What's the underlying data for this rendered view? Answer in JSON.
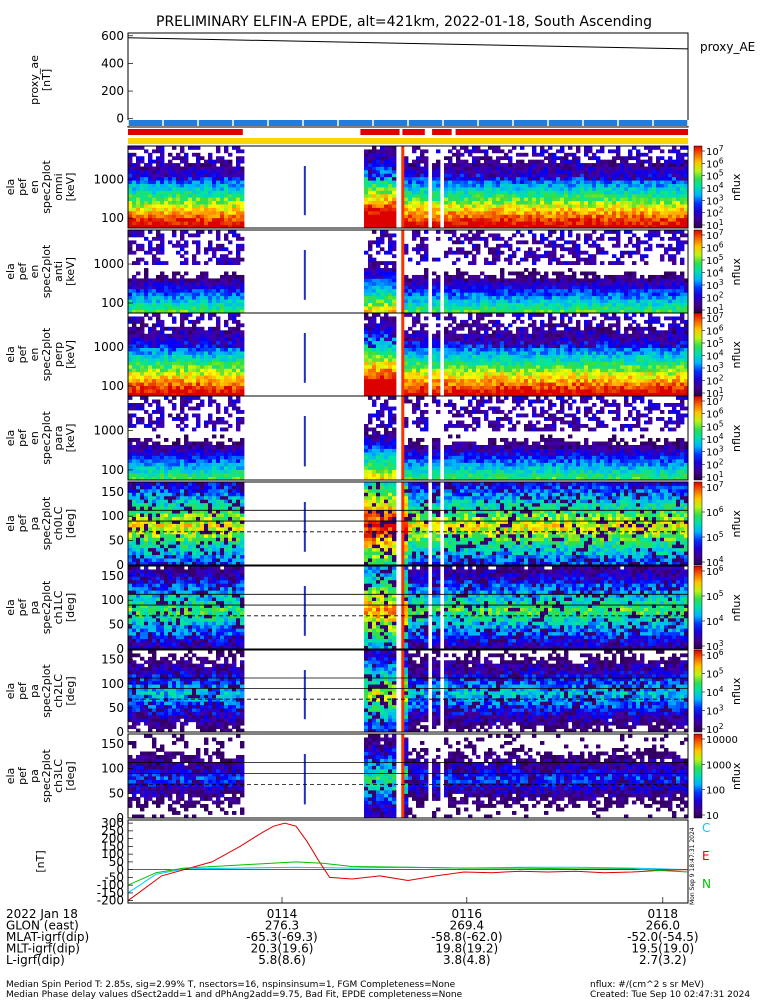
{
  "title": "PRELIMINARY ELFIN-A EPDE, alt=421km, 2022-01-18, South Ascending",
  "chart_data": [
    {
      "type": "line",
      "panel": "proxy_ae",
      "ylabel": [
        "proxy_ae",
        "[nT]"
      ],
      "yticks": [
        "600",
        "400",
        "200",
        "0"
      ],
      "ylim": [
        -60,
        620
      ],
      "legend": [
        "proxy_AE"
      ],
      "x": [
        0,
        1
      ],
      "values": [
        585,
        505
      ]
    },
    {
      "type": "heatmap",
      "panel": "status_bars",
      "bars": [
        {
          "color": "#1e7de0",
          "segments": [
            [
              0,
              1
            ]
          ],
          "note": "blue ticks"
        },
        {
          "color": "#e00000",
          "segments": [
            [
              0,
              0.205
            ],
            [
              0.415,
              0.485
            ],
            [
              0.49,
              0.53
            ],
            [
              0.543,
              0.578
            ],
            [
              0.585,
              1
            ]
          ]
        },
        {
          "color": "#ffd400",
          "segments": [
            [
              0,
              1
            ]
          ]
        }
      ]
    },
    {
      "type": "heatmap",
      "panel": "ela pef en spec2plot omni",
      "ylabel": [
        "ela",
        "pef",
        "en",
        "spec2plot",
        "omni",
        "[keV]"
      ],
      "yticks": [
        "1000",
        "100"
      ],
      "colorbar_ticks": [
        "10^7",
        "10^6",
        "10^5",
        "10^4",
        "10^3",
        "10^2",
        "10^1"
      ],
      "colorbar_label": "nflux"
    },
    {
      "type": "heatmap",
      "panel": "ela pef en spec2plot anti",
      "ylabel": [
        "ela",
        "pef",
        "en",
        "spec2plot",
        "anti",
        "[keV]"
      ],
      "yticks": [
        "1000",
        "100"
      ],
      "colorbar_ticks": [
        "10^7",
        "10^6",
        "10^5",
        "10^4",
        "10^3",
        "10^2",
        "10^1"
      ],
      "colorbar_label": "nflux"
    },
    {
      "type": "heatmap",
      "panel": "ela pef en spec2plot perp",
      "ylabel": [
        "ela",
        "pef",
        "en",
        "spec2plot",
        "perp",
        "[keV]"
      ],
      "yticks": [
        "1000",
        "100"
      ],
      "colorbar_ticks": [
        "10^7",
        "10^6",
        "10^5",
        "10^4",
        "10^3",
        "10^2",
        "10^1"
      ],
      "colorbar_label": "nflux"
    },
    {
      "type": "heatmap",
      "panel": "ela pef en spec2plot para",
      "ylabel": [
        "ela",
        "pef",
        "en",
        "spec2plot",
        "para",
        "[keV]"
      ],
      "yticks": [
        "1000",
        "100"
      ],
      "colorbar_ticks": [
        "10^7",
        "10^6",
        "10^5",
        "10^4",
        "10^3",
        "10^2",
        "10^1"
      ],
      "colorbar_label": "nflux"
    },
    {
      "type": "heatmap",
      "panel": "ela pef pa spec2plot ch0LC",
      "ylabel": [
        "ela",
        "pef",
        "pa",
        "spec2plot",
        "ch0LC",
        "[deg]"
      ],
      "yticks": [
        "150",
        "100",
        "50",
        "0"
      ],
      "colorbar_ticks": [
        "10^7",
        "10^6",
        "10^5",
        "10^4"
      ],
      "colorbar_label": "nflux"
    },
    {
      "type": "heatmap",
      "panel": "ela pef pa spec2plot ch1LC",
      "ylabel": [
        "ela",
        "pef",
        "pa",
        "spec2plot",
        "ch1LC",
        "[deg]"
      ],
      "yticks": [
        "150",
        "100",
        "50",
        "0"
      ],
      "colorbar_ticks": [
        "10^6",
        "10^5",
        "10^4",
        "10^3"
      ],
      "colorbar_label": "nflux"
    },
    {
      "type": "heatmap",
      "panel": "ela pef pa spec2plot ch2LC",
      "ylabel": [
        "ela",
        "pef",
        "pa",
        "spec2plot",
        "ch2LC",
        "[deg]"
      ],
      "yticks": [
        "150",
        "100",
        "50",
        "0"
      ],
      "colorbar_ticks": [
        "10^6",
        "10^5",
        "10^4",
        "10^3",
        "10^2"
      ],
      "colorbar_label": "nflux"
    },
    {
      "type": "heatmap",
      "panel": "ela pef pa spec2plot ch3LC",
      "ylabel": [
        "ela",
        "pef",
        "pa",
        "spec2plot",
        "ch3LC",
        "[deg]"
      ],
      "yticks": [
        "150",
        "100",
        "50",
        "0"
      ],
      "colorbar_ticks": [
        "10000",
        "1000",
        "100",
        "10"
      ],
      "colorbar_label": "nflux"
    },
    {
      "type": "line",
      "panel": "magnetic field",
      "ylabel": [
        "[nT]"
      ],
      "yticks": [
        "300",
        "250",
        "200",
        "150",
        "100",
        "50",
        "0",
        "-50",
        "-100",
        "-150",
        "-200"
      ],
      "ylim": [
        -215,
        320
      ],
      "legend": [
        "C",
        "E",
        "N"
      ],
      "series": [
        {
          "name": "C",
          "color": "#00c8ff",
          "x": [
            0,
            0.05,
            0.1,
            0.2,
            0.3,
            0.4,
            0.5,
            0.6,
            0.7,
            0.8,
            0.9,
            1.0
          ],
          "values": [
            -150,
            -30,
            5,
            10,
            15,
            10,
            15,
            10,
            15,
            15,
            10,
            0
          ]
        },
        {
          "name": "E",
          "color": "#e00000",
          "x": [
            0,
            0.03,
            0.06,
            0.1,
            0.15,
            0.2,
            0.24,
            0.26,
            0.28,
            0.3,
            0.32,
            0.34,
            0.36,
            0.4,
            0.45,
            0.5,
            0.55,
            0.6,
            0.65,
            0.7,
            0.75,
            0.8,
            0.85,
            0.9,
            0.95,
            1.0
          ],
          "values": [
            -200,
            -120,
            -40,
            0,
            50,
            150,
            240,
            280,
            300,
            280,
            180,
            60,
            -50,
            -60,
            -40,
            -70,
            -40,
            -15,
            -20,
            -10,
            -15,
            -10,
            -20,
            -15,
            -5,
            0
          ]
        },
        {
          "name": "N",
          "color": "#00c000",
          "x": [
            0,
            0.05,
            0.1,
            0.2,
            0.3,
            0.35,
            0.4,
            0.5,
            0.6,
            0.7,
            0.8,
            0.9,
            1.0
          ],
          "values": [
            -100,
            -20,
            10,
            30,
            50,
            40,
            20,
            15,
            10,
            10,
            5,
            5,
            -15
          ]
        }
      ]
    }
  ],
  "time_axis": {
    "ticks": [
      "0114",
      "0116",
      "0118"
    ],
    "rows": [
      {
        "label": "2022 Jan 18",
        "values": [
          "",
          "",
          ""
        ]
      },
      {
        "label": "GLON (east)",
        "values": [
          "276.3",
          "269.4",
          "266.0"
        ]
      },
      {
        "label": "MLAT-igrf(dip)",
        "values": [
          "-65.3(-69.3)",
          "-58.8(-62.0)",
          "-52.0(-54.5)"
        ]
      },
      {
        "label": "MLT-igrf(dip)",
        "values": [
          "20.3(19.6)",
          "19.8(19.2)",
          "19.5(19.0)"
        ]
      },
      {
        "label": "L-igrf(dip)",
        "values": [
          "5.8(8.6)",
          "3.8(4.8)",
          "2.7(3.2)"
        ]
      }
    ]
  },
  "footer": {
    "line1_left": "Median Spin Period T: 2.85s, sig=2.99% T, nsectors=16, nspinsinsum=1, FGM Completeness=None",
    "line2_left": "Median Phase delay values dSect2add=1 and dPhAng2add=9.75, Bad Fit, EPDE completeness=None",
    "line1_right": "nflux: #/(cm^2 s sr MeV)",
    "line2_right": "Created: Tue Sep 10 02:47:31 2024"
  },
  "side_note": "Mon Sep 9 18:47:31 2024"
}
